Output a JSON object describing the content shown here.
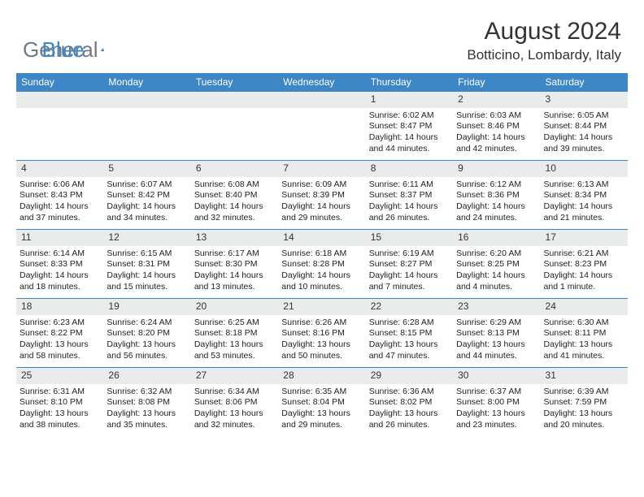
{
  "logo": {
    "text1": "General",
    "text2": "Blue"
  },
  "title": "August 2024",
  "location": "Botticino, Lombardy, Italy",
  "colors": {
    "headerBlue": "#3d87c7",
    "dayStrip": "#e9eceb",
    "logoGray": "#6e7a82",
    "text": "#333333",
    "bg": "#ffffff"
  },
  "weekdays": [
    "Sunday",
    "Monday",
    "Tuesday",
    "Wednesday",
    "Thursday",
    "Friday",
    "Saturday"
  ],
  "weeks": [
    [
      null,
      null,
      null,
      null,
      {
        "n": "1",
        "sr": "6:02 AM",
        "ss": "8:47 PM",
        "dl": "14 hours and 44 minutes."
      },
      {
        "n": "2",
        "sr": "6:03 AM",
        "ss": "8:46 PM",
        "dl": "14 hours and 42 minutes."
      },
      {
        "n": "3",
        "sr": "6:05 AM",
        "ss": "8:44 PM",
        "dl": "14 hours and 39 minutes."
      }
    ],
    [
      {
        "n": "4",
        "sr": "6:06 AM",
        "ss": "8:43 PM",
        "dl": "14 hours and 37 minutes."
      },
      {
        "n": "5",
        "sr": "6:07 AM",
        "ss": "8:42 PM",
        "dl": "14 hours and 34 minutes."
      },
      {
        "n": "6",
        "sr": "6:08 AM",
        "ss": "8:40 PM",
        "dl": "14 hours and 32 minutes."
      },
      {
        "n": "7",
        "sr": "6:09 AM",
        "ss": "8:39 PM",
        "dl": "14 hours and 29 minutes."
      },
      {
        "n": "8",
        "sr": "6:11 AM",
        "ss": "8:37 PM",
        "dl": "14 hours and 26 minutes."
      },
      {
        "n": "9",
        "sr": "6:12 AM",
        "ss": "8:36 PM",
        "dl": "14 hours and 24 minutes."
      },
      {
        "n": "10",
        "sr": "6:13 AM",
        "ss": "8:34 PM",
        "dl": "14 hours and 21 minutes."
      }
    ],
    [
      {
        "n": "11",
        "sr": "6:14 AM",
        "ss": "8:33 PM",
        "dl": "14 hours and 18 minutes."
      },
      {
        "n": "12",
        "sr": "6:15 AM",
        "ss": "8:31 PM",
        "dl": "14 hours and 15 minutes."
      },
      {
        "n": "13",
        "sr": "6:17 AM",
        "ss": "8:30 PM",
        "dl": "14 hours and 13 minutes."
      },
      {
        "n": "14",
        "sr": "6:18 AM",
        "ss": "8:28 PM",
        "dl": "14 hours and 10 minutes."
      },
      {
        "n": "15",
        "sr": "6:19 AM",
        "ss": "8:27 PM",
        "dl": "14 hours and 7 minutes."
      },
      {
        "n": "16",
        "sr": "6:20 AM",
        "ss": "8:25 PM",
        "dl": "14 hours and 4 minutes."
      },
      {
        "n": "17",
        "sr": "6:21 AM",
        "ss": "8:23 PM",
        "dl": "14 hours and 1 minute."
      }
    ],
    [
      {
        "n": "18",
        "sr": "6:23 AM",
        "ss": "8:22 PM",
        "dl": "13 hours and 58 minutes."
      },
      {
        "n": "19",
        "sr": "6:24 AM",
        "ss": "8:20 PM",
        "dl": "13 hours and 56 minutes."
      },
      {
        "n": "20",
        "sr": "6:25 AM",
        "ss": "8:18 PM",
        "dl": "13 hours and 53 minutes."
      },
      {
        "n": "21",
        "sr": "6:26 AM",
        "ss": "8:16 PM",
        "dl": "13 hours and 50 minutes."
      },
      {
        "n": "22",
        "sr": "6:28 AM",
        "ss": "8:15 PM",
        "dl": "13 hours and 47 minutes."
      },
      {
        "n": "23",
        "sr": "6:29 AM",
        "ss": "8:13 PM",
        "dl": "13 hours and 44 minutes."
      },
      {
        "n": "24",
        "sr": "6:30 AM",
        "ss": "8:11 PM",
        "dl": "13 hours and 41 minutes."
      }
    ],
    [
      {
        "n": "25",
        "sr": "6:31 AM",
        "ss": "8:10 PM",
        "dl": "13 hours and 38 minutes."
      },
      {
        "n": "26",
        "sr": "6:32 AM",
        "ss": "8:08 PM",
        "dl": "13 hours and 35 minutes."
      },
      {
        "n": "27",
        "sr": "6:34 AM",
        "ss": "8:06 PM",
        "dl": "13 hours and 32 minutes."
      },
      {
        "n": "28",
        "sr": "6:35 AM",
        "ss": "8:04 PM",
        "dl": "13 hours and 29 minutes."
      },
      {
        "n": "29",
        "sr": "6:36 AM",
        "ss": "8:02 PM",
        "dl": "13 hours and 26 minutes."
      },
      {
        "n": "30",
        "sr": "6:37 AM",
        "ss": "8:00 PM",
        "dl": "13 hours and 23 minutes."
      },
      {
        "n": "31",
        "sr": "6:39 AM",
        "ss": "7:59 PM",
        "dl": "13 hours and 20 minutes."
      }
    ]
  ],
  "labels": {
    "sunrise": "Sunrise:",
    "sunset": "Sunset:",
    "daylight": "Daylight:"
  }
}
